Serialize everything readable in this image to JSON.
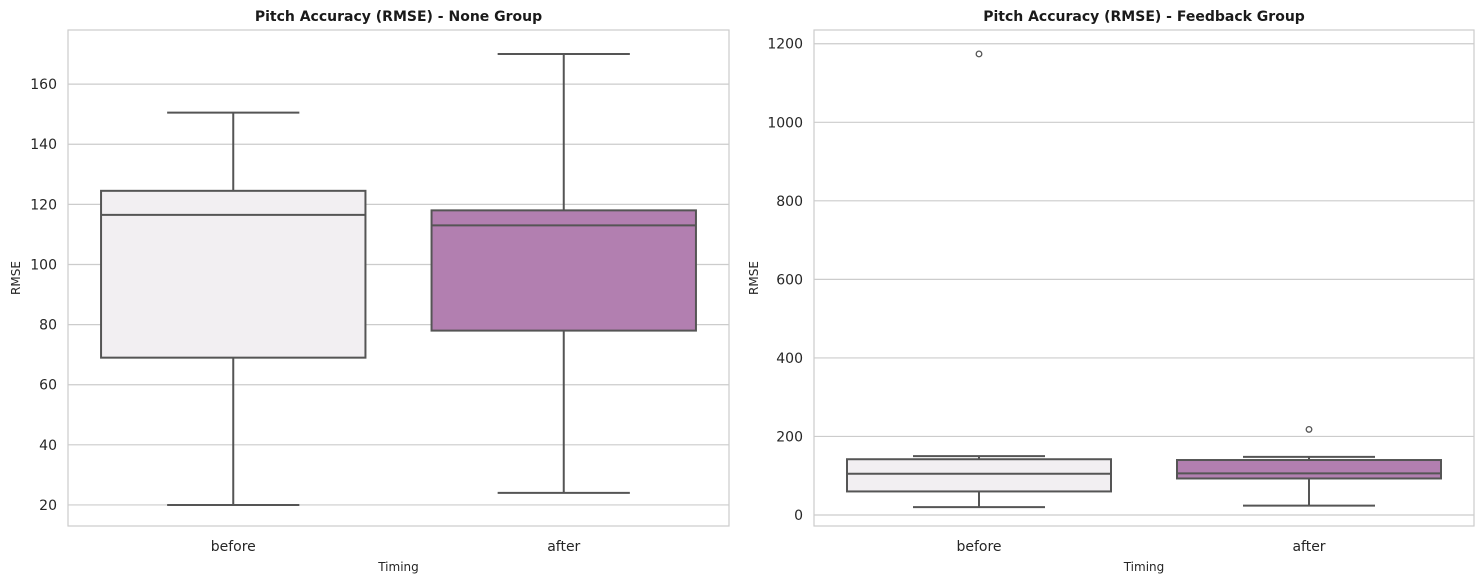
{
  "chart_data": [
    {
      "type": "box",
      "title": "Pitch Accuracy (RMSE) - None Group",
      "xlabel": "Timing",
      "ylabel": "RMSE",
      "categories": [
        "before",
        "after"
      ],
      "ylim": [
        13,
        178
      ],
      "yticks": [
        20,
        40,
        60,
        80,
        100,
        120,
        140,
        160
      ],
      "grid": true,
      "boxes": [
        {
          "category": "before",
          "whisker_low": 20,
          "q1": 69,
          "median": 116.5,
          "q3": 124.5,
          "whisker_high": 150.5,
          "fill": "#f2eff2",
          "outliers": []
        },
        {
          "category": "after",
          "whisker_low": 24,
          "q1": 78,
          "median": 113,
          "q3": 118,
          "whisker_high": 170,
          "fill": "#b27fb0",
          "outliers": []
        }
      ]
    },
    {
      "type": "box",
      "title": "Pitch Accuracy (RMSE) - Feedback Group",
      "xlabel": "Timing",
      "ylabel": "RMSE",
      "categories": [
        "before",
        "after"
      ],
      "ylim": [
        -28,
        1235
      ],
      "yticks": [
        0,
        200,
        400,
        600,
        800,
        1000,
        1200
      ],
      "grid": true,
      "boxes": [
        {
          "category": "before",
          "whisker_low": 20,
          "q1": 60,
          "median": 105,
          "q3": 142,
          "whisker_high": 150,
          "fill": "#f2eff2",
          "outliers": [
            1174
          ]
        },
        {
          "category": "after",
          "whisker_low": 24,
          "q1": 93,
          "median": 106,
          "q3": 140,
          "whisker_high": 148,
          "fill": "#b27fb0",
          "outliers": [
            218
          ]
        }
      ]
    }
  ],
  "colors": {
    "grid": "#cccccc",
    "spine": "#cccccc",
    "line": "#555555",
    "text": "#262626"
  }
}
